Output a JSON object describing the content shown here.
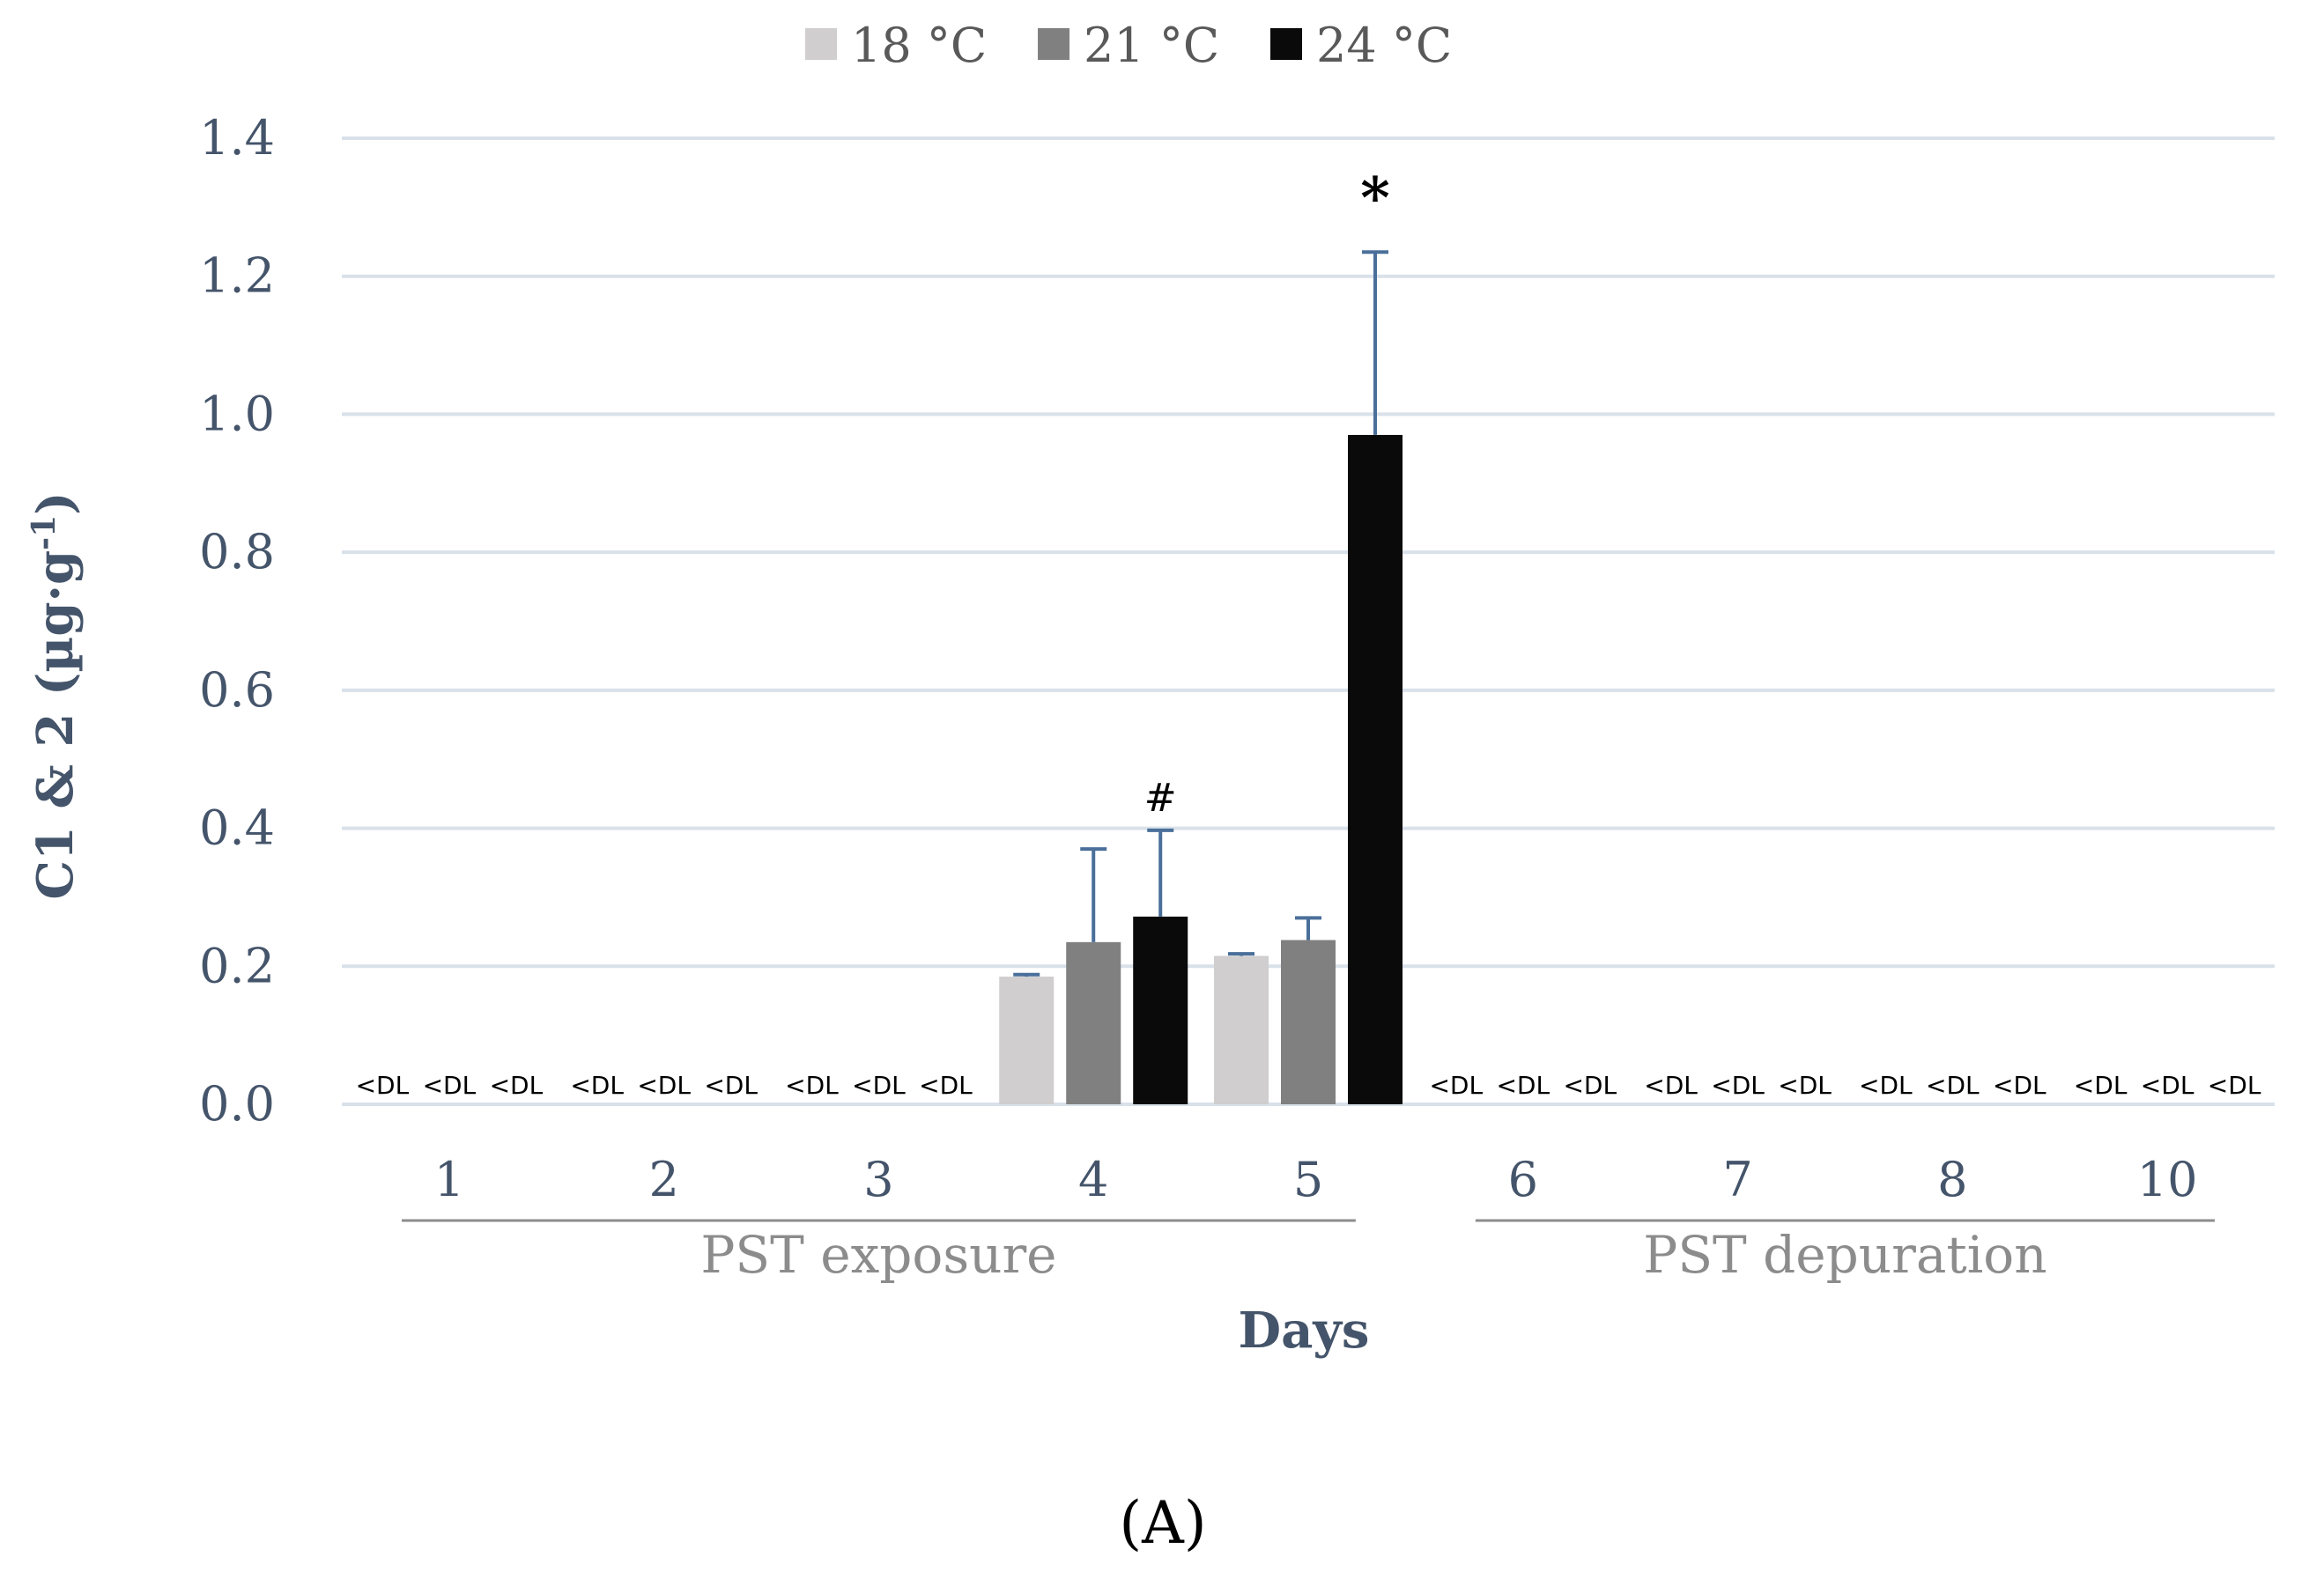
{
  "chart_data": {
    "type": "bar",
    "ylabel": "C1 & 2 (µg·g",
    "ylabel_sup": "-1",
    "ylabel_close": ")",
    "xlabel": "Days",
    "ylim": [
      0,
      1.4
    ],
    "yticks": [
      "0.0",
      "0.2",
      "0.4",
      "0.6",
      "0.8",
      "1.0",
      "1.2",
      "1.4"
    ],
    "categories": [
      "1",
      "2",
      "3",
      "4",
      "5",
      "6",
      "7",
      "8",
      "10"
    ],
    "category_groups": [
      {
        "label": "PST exposure",
        "from": 0,
        "to": 4
      },
      {
        "label": "PST depuration",
        "from": 5,
        "to": 8
      }
    ],
    "legend_position": "top-center",
    "grid": true,
    "below_detection_label": "<DL",
    "series": [
      {
        "name": "18 °C",
        "color": "#d0cece",
        "values": [
          null,
          null,
          null,
          0.185,
          0.215,
          null,
          null,
          null,
          null
        ],
        "errors": [
          null,
          null,
          null,
          0.003,
          0.003,
          null,
          null,
          null,
          null
        ]
      },
      {
        "name": "21 °C",
        "color": "#808080",
        "values": [
          null,
          null,
          null,
          0.235,
          0.238,
          null,
          null,
          null,
          null
        ],
        "errors": [
          null,
          null,
          null,
          0.135,
          0.032,
          null,
          null,
          null,
          null
        ]
      },
      {
        "name": "24 °C",
        "color": "#0a0a0a",
        "values": [
          null,
          null,
          null,
          0.272,
          0.97,
          null,
          null,
          null,
          null
        ],
        "errors": [
          null,
          null,
          null,
          0.125,
          0.265,
          null,
          null,
          null,
          null
        ]
      }
    ],
    "annotations": [
      {
        "text": "#",
        "category": 3,
        "series": 2
      },
      {
        "text": "*",
        "category": 4,
        "series": 2
      }
    ],
    "colors": {
      "error_bar": "#4a6f9a",
      "grid": "#d9e1ea"
    }
  },
  "panel_label": "(A)"
}
